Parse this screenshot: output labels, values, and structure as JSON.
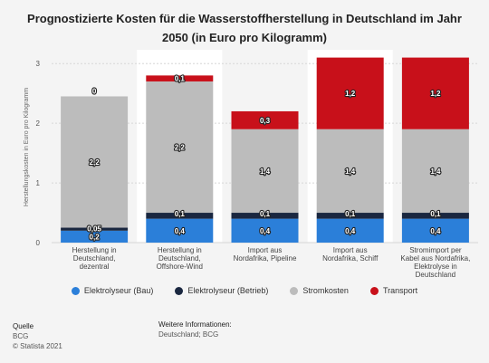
{
  "title": "Prognostizierte Kosten für die Wasserstoffherstellung in Deutschland im Jahr 2050 (in Euro pro Kilogramm)",
  "chart_data": {
    "type": "bar",
    "stacked": true,
    "categories": [
      "Herstellung in Deutschland, dezentral",
      "Herstellung in Deutschland, Offshore-Wind",
      "Import aus Nordafrika, Pipeline",
      "Import aus Nordafrika, Schiff",
      "Stromimport per Kabel aus Nordafrika, Elektrolyse in Deutschland"
    ],
    "category_lines": [
      [
        "Herstellung in",
        "Deutschland,",
        "dezentral"
      ],
      [
        "Herstellung in",
        "Deutschland,",
        "Offshore-Wind"
      ],
      [
        "Import aus",
        "Nordafrika, Pipeline"
      ],
      [
        "Import aus",
        "Nordafrika, Schiff"
      ],
      [
        "Stromimport per",
        "Kabel aus Nordafrika,",
        "Elektrolyse in",
        "Deutschland"
      ]
    ],
    "series": [
      {
        "name": "Elektrolyseur (Bau)",
        "color": "#2b7fd9",
        "values": [
          0.2,
          0.4,
          0.4,
          0.4,
          0.4
        ],
        "labels": [
          "0,2",
          "0,4",
          "0,4",
          "0,4",
          "0,4"
        ]
      },
      {
        "name": "Elektrolyseur (Betrieb)",
        "color": "#1a2740",
        "values": [
          0.05,
          0.1,
          0.1,
          0.1,
          0.1
        ],
        "labels": [
          "0,05",
          "0,1",
          "0,1",
          "0,1",
          "0,1"
        ]
      },
      {
        "name": "Stromkosten",
        "color": "#bcbcbc",
        "values": [
          2.2,
          2.2,
          1.4,
          1.4,
          1.4
        ],
        "labels": [
          "2,2",
          "2,2",
          "1,4",
          "1,4",
          "1,4"
        ]
      },
      {
        "name": "Transport",
        "color": "#c8101a",
        "values": [
          0,
          0.1,
          0.3,
          1.2,
          1.2
        ],
        "labels": [
          "0",
          "0,1",
          "0,3",
          "1,2",
          "1,2"
        ]
      }
    ],
    "ylabel": "Herstellungskosten in Euro pro Kilogramm",
    "yticks": [
      0,
      1,
      2,
      3
    ],
    "ylim": [
      0,
      3.2
    ],
    "grid": true,
    "legend_position": "bottom"
  },
  "footer": {
    "source_heading": "Quelle",
    "source": "BCG",
    "copyright": "© Statista 2021",
    "info_heading": "Weitere Informationen:",
    "info": "Deutschland; BCG"
  }
}
